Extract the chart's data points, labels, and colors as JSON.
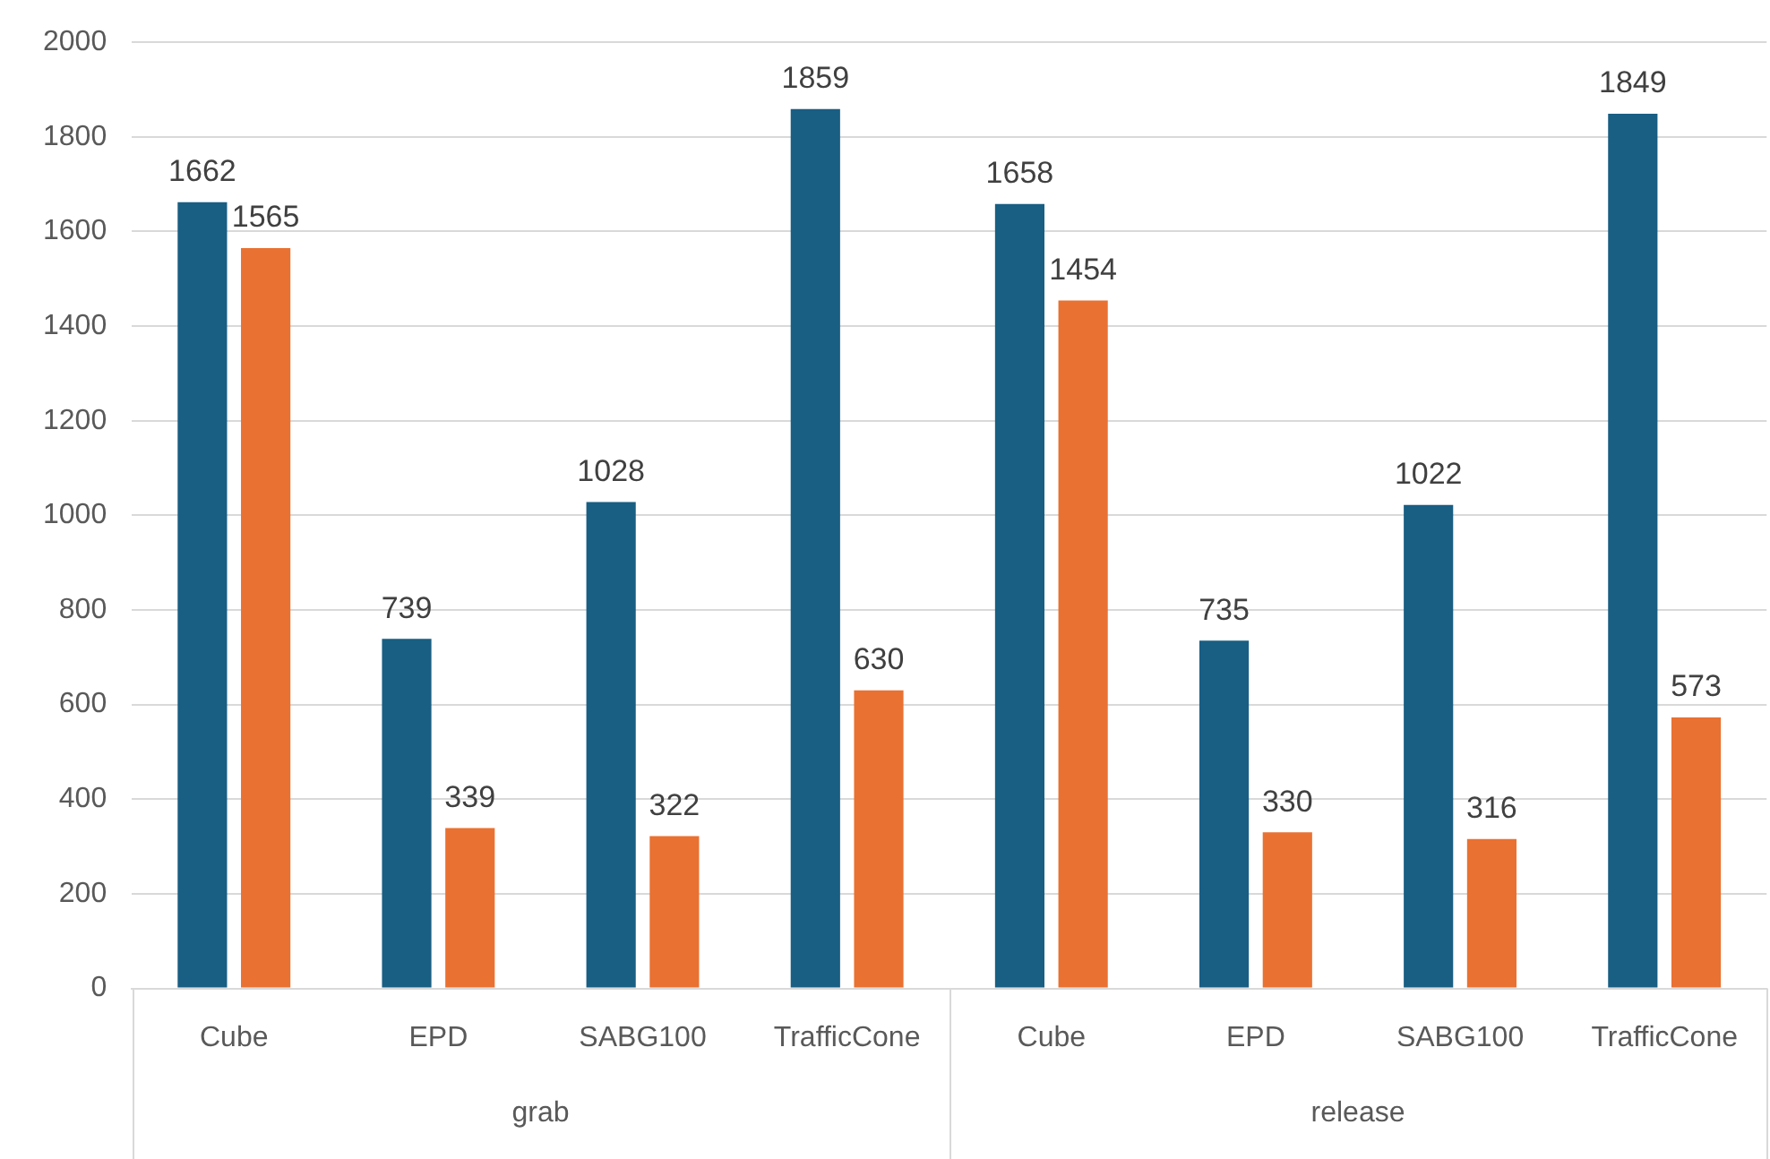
{
  "chart_data": {
    "type": "bar",
    "categories": [
      "Cube",
      "EPD",
      "SABG100",
      "TrafficCone",
      "Cube",
      "EPD",
      "SABG100",
      "TrafficCone"
    ],
    "series": [
      {
        "color": "#195e83",
        "values": [
          1662,
          739,
          1028,
          1859,
          1658,
          735,
          1022,
          1849
        ]
      },
      {
        "color": "#e97132",
        "values": [
          1565,
          339,
          322,
          630,
          1454,
          330,
          316,
          573
        ]
      }
    ],
    "ylim": [
      0,
      2000
    ],
    "yticks": [
      0,
      200,
      400,
      600,
      800,
      1000,
      1200,
      1400,
      1600,
      1800,
      2000
    ],
    "grid": "y",
    "legend": false,
    "data_labels": true,
    "annotations": [
      "grab",
      "release"
    ]
  }
}
